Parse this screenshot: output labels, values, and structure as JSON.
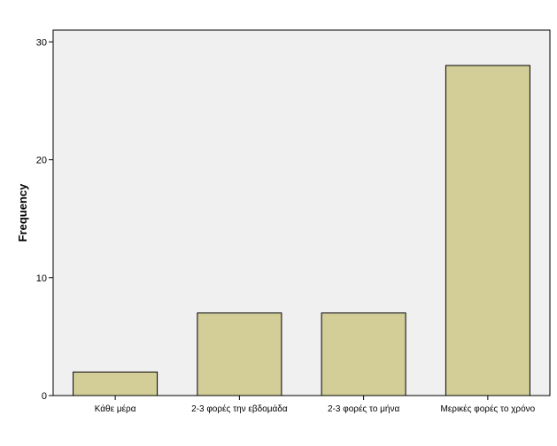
{
  "chart_data": {
    "type": "bar",
    "title": "",
    "xlabel": "",
    "ylabel": "Frequency",
    "categories": [
      "Κάθε μέρα",
      "2-3 φορές την εβδομάδα",
      "2-3 φορές το μήνα",
      "Μερικές φορές το χρόνο"
    ],
    "values": [
      2,
      7,
      7,
      28
    ],
    "ylim": [
      0,
      31
    ],
    "yticks": [
      0,
      10,
      20,
      30
    ],
    "grid": false,
    "legend": "none",
    "colors": {
      "bar_fill": "#d3ce98",
      "bar_stroke": "#000000",
      "plot_background": "#f0f0f0",
      "axis": "#000000"
    }
  }
}
